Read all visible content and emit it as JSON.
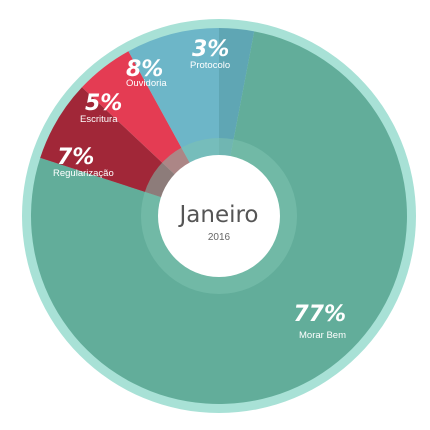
{
  "chart_data": {
    "type": "pie",
    "center_title": "Janeiro",
    "center_subtitle": "2016",
    "slices": [
      {
        "name": "Protocolo",
        "value": 3,
        "label": "3%",
        "color": "#5fa6b4"
      },
      {
        "name": "Morar Bem",
        "value": 77,
        "label": "77%",
        "color": "#62ad9a"
      },
      {
        "name": "Regularização",
        "value": 7,
        "label": "7%",
        "color": "#a12738"
      },
      {
        "name": "Escritura",
        "value": 5,
        "label": "5%",
        "color": "#e43c53"
      },
      {
        "name": "Ouvidoria",
        "value": 8,
        "label": "8%",
        "color": "#6db6c8"
      }
    ]
  },
  "colors": {
    "outer_ring": "#a8e1d6",
    "inner_ring": "#7dc3b0",
    "center": "#ffffff"
  }
}
